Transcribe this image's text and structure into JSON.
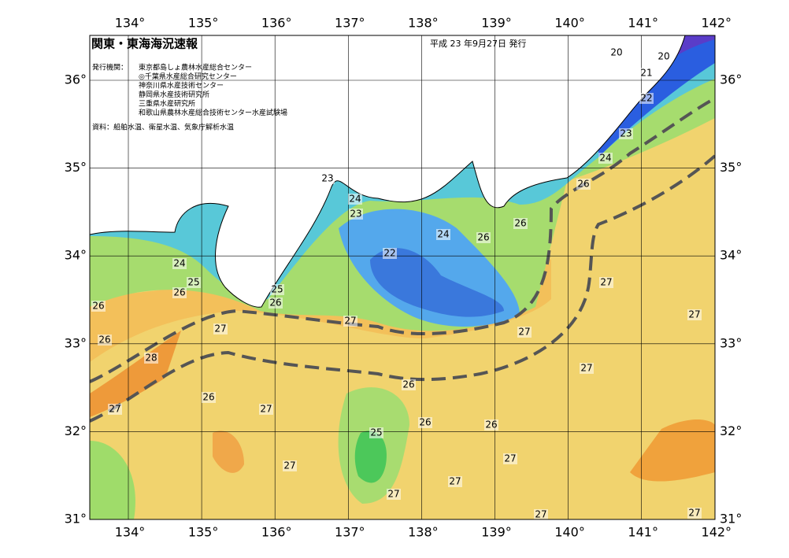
{
  "header": {
    "title": "関東・東海海況速報",
    "date": "平成 23 年9月27日 発行",
    "agencies_label": "発行機関：",
    "agencies": [
      "東京都島しょ農林水産総合センター",
      "◎千葉県水産総合研究センター",
      "神奈川県水産技術センター",
      "静岡県水産技術研究所",
      "三重県水産研究所",
      "和歌山県農林水産総合技術センター水産試験場"
    ],
    "source": "資料：船舶水温、衛星水温、気象庁解析水温"
  },
  "map": {
    "lon_ticks": [
      {
        "value": 134,
        "label": "134°"
      },
      {
        "value": 135,
        "label": "135°"
      },
      {
        "value": 136,
        "label": "136°"
      },
      {
        "value": 137,
        "label": "137°"
      },
      {
        "value": 138,
        "label": "138°"
      },
      {
        "value": 139,
        "label": "139°"
      },
      {
        "value": 140,
        "label": "140°"
      },
      {
        "value": 141,
        "label": "141°"
      },
      {
        "value": 142,
        "label": "142°"
      }
    ],
    "lat_ticks": [
      {
        "value": 31,
        "label": "31°"
      },
      {
        "value": 32,
        "label": "32°"
      },
      {
        "value": 33,
        "label": "33°"
      },
      {
        "value": 34,
        "label": "34°"
      },
      {
        "value": 35,
        "label": "35°"
      },
      {
        "value": 36,
        "label": "36°"
      }
    ],
    "contour_labels": [
      "20",
      "20",
      "21",
      "22",
      "23",
      "24",
      "26",
      "23",
      "24",
      "23",
      "24",
      "26",
      "26",
      "22",
      "24",
      "25",
      "26",
      "25",
      "26",
      "26",
      "27",
      "27",
      "26",
      "28",
      "27",
      "27",
      "27",
      "27",
      "26",
      "26",
      "27",
      "27",
      "26",
      "26",
      "25",
      "27",
      "27",
      "27",
      "27",
      "27",
      "27"
    ]
  }
}
